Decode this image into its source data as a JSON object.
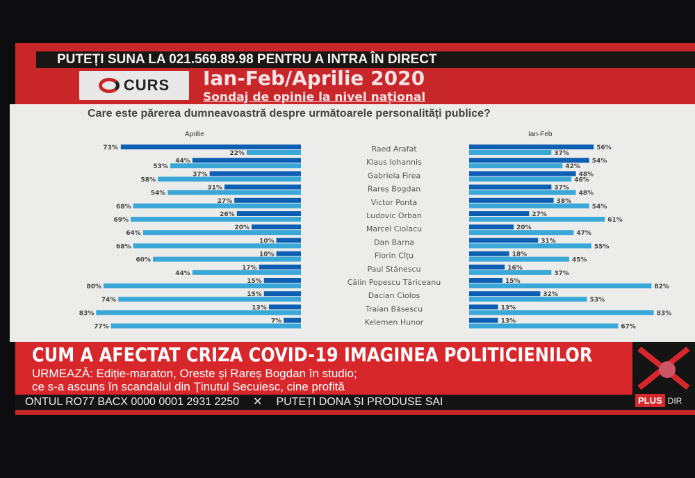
{
  "ticker_top": "PUTEȚI SUNA LA 021.569.89.98 PENTRU A INTRA ÎN DIRECT",
  "logo_text": "CURS",
  "title": "Ian-Feb/Aprilie 2020",
  "subtitle": "Sondaj de opinie la nivel național",
  "headline": "CUM A AFECTAT CRIZA COVID-19 IMAGINEA POLITICIENILOR",
  "sub_line1": "URMEAZĂ: Ediție-maraton, Oreste și Rareș Bogdan în studio;",
  "sub_line2": "ce s-a ascuns în scandalul din Ținutul Secuiesc, cine profită",
  "ticker_left": "ONTUL RO77 BACX 0000 0001 2931 2250",
  "ticker_right": "PUTEȚI DONA ȘI PRODUSE SAI",
  "plus_label": "PLUS",
  "plus_suffix": "DIR",
  "colors": {
    "dark": "#0d5fb3",
    "light": "#3aa7d9"
  },
  "chart_data": {
    "type": "bar",
    "title": "Care este părerea dumneavoastră despre următoarele personalități publice?",
    "categories": [
      "Raed Arafat",
      "Klaus Iohannis",
      "Gabriela Firea",
      "Rareș Bogdan",
      "Victor Ponta",
      "Ludovic Orban",
      "Marcel Ciolacu",
      "Dan Barna",
      "Florin Cîțu",
      "Paul Stănescu",
      "Călin Popescu Tăriceanu",
      "Dacian Cioloș",
      "Traian Băsescu",
      "Kelemen Hunor"
    ],
    "panels": [
      {
        "label": "Aprilie",
        "direction": "left",
        "series": [
          {
            "name": "dark",
            "values": [
              73,
              44,
              37,
              31,
              27,
              26,
              20,
              10,
              10,
              17,
              15,
              15,
              13,
              7
            ]
          },
          {
            "name": "light",
            "values": [
              22,
              53,
              58,
              54,
              68,
              69,
              64,
              68,
              60,
              44,
              80,
              74,
              83,
              77
            ]
          }
        ]
      },
      {
        "label": "Ian-Feb",
        "direction": "right",
        "series": [
          {
            "name": "dark",
            "values": [
              56,
              54,
              48,
              37,
              38,
              27,
              20,
              31,
              18,
              16,
              15,
              32,
              13,
              13
            ]
          },
          {
            "name": "light",
            "values": [
              37,
              42,
              46,
              48,
              54,
              61,
              47,
              55,
              45,
              37,
              82,
              53,
              83,
              67
            ]
          }
        ]
      }
    ]
  }
}
